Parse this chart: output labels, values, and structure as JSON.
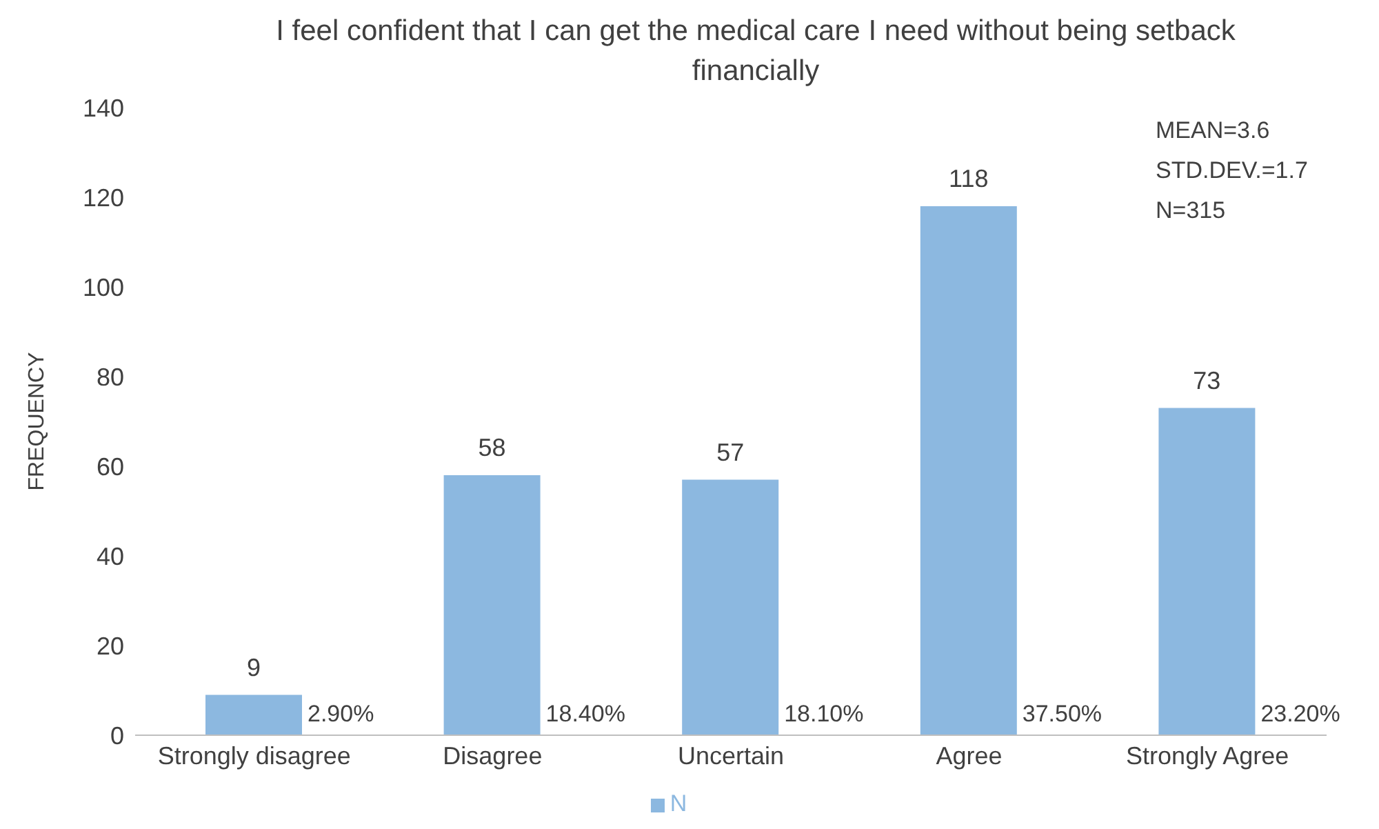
{
  "chart_data": {
    "type": "bar",
    "title": "I feel confident that I can get the medical care I need without being setback financially",
    "ylabel": "FREQUENCY",
    "categories": [
      "Strongly  disagree",
      "Disagree",
      "Uncertain",
      "Agree",
      "Strongly  Agree"
    ],
    "series": [
      {
        "name": "N",
        "color": "#8cb8e0",
        "values": [
          9,
          58,
          57,
          118,
          73
        ]
      }
    ],
    "data_labels": true,
    "ylim": [
      0,
      140
    ],
    "yticks": [
      0,
      20,
      40,
      60,
      80,
      100,
      120,
      140
    ],
    "grid": false,
    "legend": "bottom",
    "annotations": [
      "MEAN=3.6",
      "STD.DEV.=1.7",
      "N=315",
      {
        "text": "2.90%",
        "x": "Strongly  disagree",
        "y": 0
      },
      {
        "text": "18.40%",
        "x": "Disagree",
        "y": 0
      },
      {
        "text": "18.10%",
        "x": "Uncertain",
        "y": 0
      },
      {
        "text": "37.50%",
        "x": "Agree",
        "y": 0
      },
      {
        "text": "23.20%",
        "x": "Strongly  Agree",
        "y": 0
      }
    ]
  }
}
